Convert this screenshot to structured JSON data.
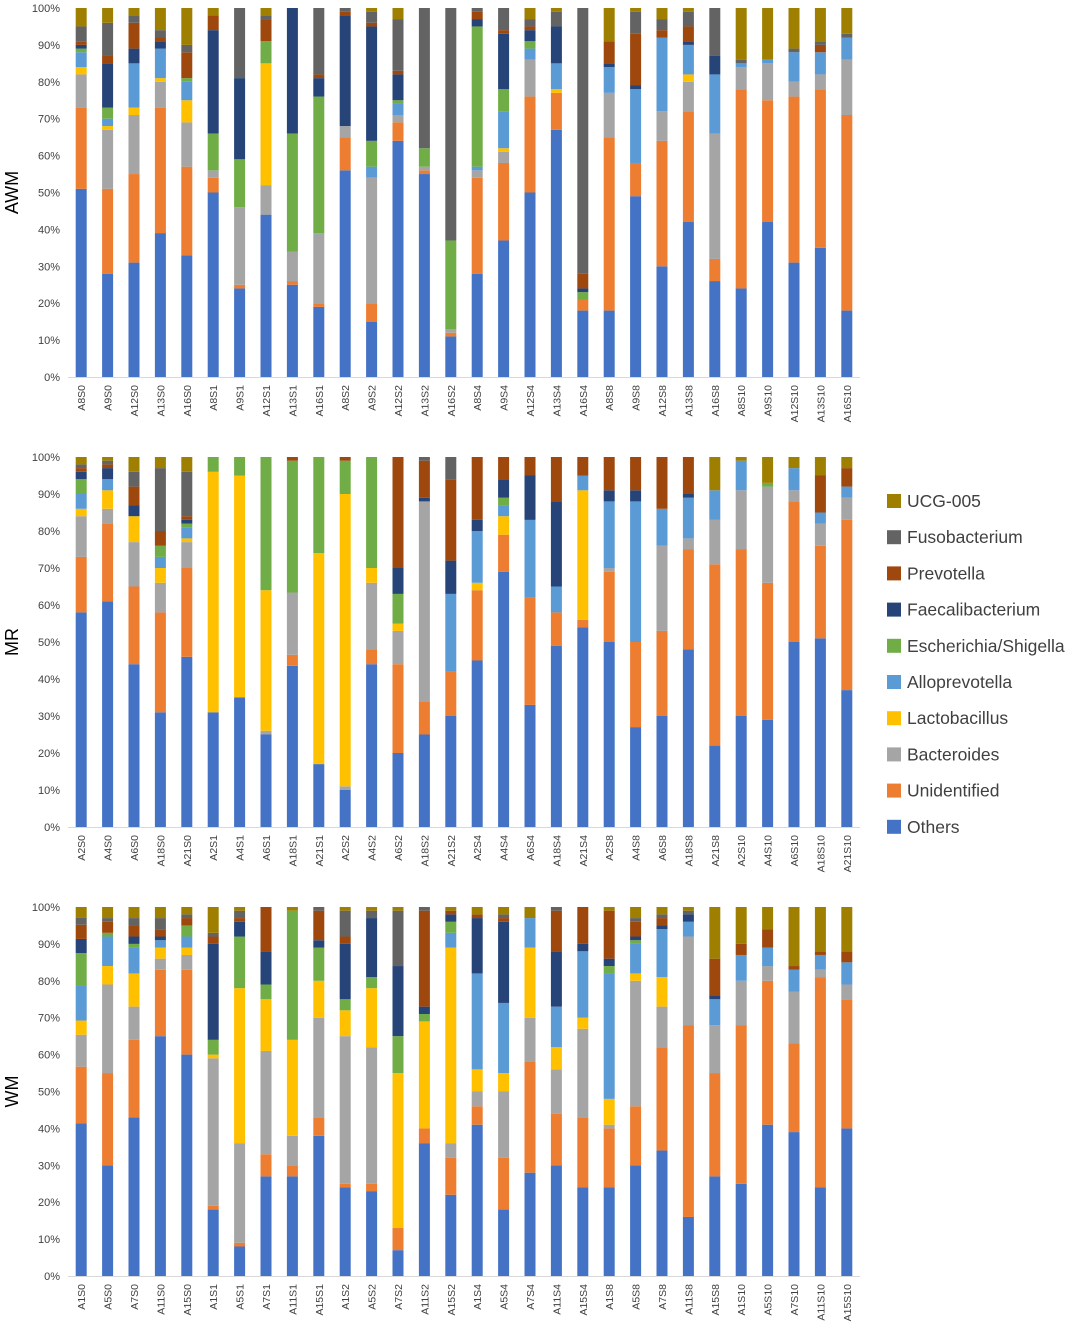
{
  "legend": {
    "placement": "right",
    "items": [
      {
        "name": "UCG-005",
        "color": "#9e7f00"
      },
      {
        "name": "Fusobacterium",
        "color": "#636363"
      },
      {
        "name": "Prevotella",
        "color": "#9e480e"
      },
      {
        "name": "Faecalibacterium",
        "color": "#264478"
      },
      {
        "name": "Escherichia/Shigella",
        "color": "#70ad47"
      },
      {
        "name": "Alloprevotella",
        "color": "#5b9bd5"
      },
      {
        "name": "Lactobacillus",
        "color": "#ffc000"
      },
      {
        "name": "Bacteroides",
        "color": "#a5a5a5"
      },
      {
        "name": "Unidentified",
        "color": "#ed7d31"
      },
      {
        "name": "Others",
        "color": "#4472c4"
      }
    ]
  },
  "chart_data": [
    {
      "type": "bar",
      "stacked": true,
      "ylabel": "AWM",
      "ylim": [
        0,
        100
      ],
      "yticks": [
        "0%",
        "10%",
        "20%",
        "30%",
        "40%",
        "50%",
        "60%",
        "70%",
        "80%",
        "90%",
        "100%"
      ],
      "series_order": [
        "Others",
        "Unidentified",
        "Bacteroides",
        "Lactobacillus",
        "Alloprevotella",
        "Escherichia/Shigella",
        "Faecalibacterium",
        "Prevotella",
        "Fusobacterium",
        "UCG-005"
      ],
      "categories": [
        "A8S0",
        "A9S0",
        "A12S0",
        "A13S0",
        "A16S0",
        "A8S1",
        "A9S1",
        "A12S1",
        "A13S1",
        "A16S1",
        "A8S2",
        "A9S2",
        "A12S2",
        "A13S2",
        "A16S2",
        "A8S4",
        "A9S4",
        "A12S4",
        "A13S4",
        "A16S4",
        "A8S8",
        "A9S8",
        "A12S8",
        "A13S8",
        "A16S8",
        "A8S10",
        "A9S10",
        "A12S10",
        "A13S10",
        "A16S10"
      ],
      "values": [
        [
          51,
          22,
          9,
          2,
          4,
          1,
          1,
          1,
          4,
          5
        ],
        [
          28,
          23,
          16,
          1,
          2,
          3,
          12,
          2,
          9,
          4
        ],
        [
          31,
          24,
          16,
          2,
          12,
          0,
          4,
          7,
          2,
          2
        ],
        [
          39,
          34,
          7,
          1,
          8,
          0,
          2,
          1,
          2,
          6
        ],
        [
          33,
          24,
          12,
          6,
          5,
          1,
          0,
          7,
          2,
          10
        ],
        [
          50,
          4,
          2,
          0,
          0,
          10,
          28,
          4,
          0,
          2
        ],
        [
          24,
          1,
          21,
          0,
          0,
          13,
          22,
          0,
          19,
          0
        ],
        [
          44,
          0,
          8,
          33,
          0,
          6,
          0,
          6,
          1,
          2
        ],
        [
          25,
          1,
          8,
          0,
          0,
          32,
          34,
          0,
          0,
          0
        ],
        [
          19,
          1,
          19,
          0,
          0,
          37,
          5,
          1,
          18,
          0
        ],
        [
          56,
          9,
          3,
          0,
          0,
          0,
          30,
          1,
          1,
          0
        ],
        [
          15,
          5,
          34,
          0,
          3,
          7,
          31,
          1,
          3,
          1
        ],
        [
          64,
          5,
          2,
          0,
          3,
          1,
          7,
          1,
          14,
          3
        ],
        [
          55,
          1,
          1,
          0,
          0,
          5,
          0,
          0,
          38,
          0
        ],
        [
          11,
          1,
          1,
          0,
          0,
          24,
          0,
          0,
          63,
          0
        ],
        [
          28,
          26,
          2,
          0,
          1,
          38,
          2,
          2,
          1,
          0
        ],
        [
          37,
          21,
          3,
          1,
          10,
          6,
          15,
          1,
          6,
          0
        ],
        [
          50,
          26,
          10,
          0,
          3,
          2,
          3,
          1,
          2,
          3
        ],
        [
          67,
          10,
          0,
          1,
          7,
          0,
          10,
          0,
          4,
          1
        ],
        [
          18,
          3,
          0,
          0,
          0,
          2,
          1,
          4,
          72,
          0
        ],
        [
          18,
          47,
          12,
          0,
          7,
          0,
          1,
          6,
          0,
          9
        ],
        [
          49,
          9,
          0,
          0,
          20,
          0,
          1,
          14,
          6,
          1
        ],
        [
          30,
          34,
          8,
          0,
          20,
          0,
          0,
          2,
          3,
          3
        ],
        [
          42,
          30,
          8,
          2,
          8,
          0,
          1,
          4,
          4,
          1
        ],
        [
          26,
          6,
          34,
          0,
          16,
          0,
          5,
          0,
          13,
          0
        ],
        [
          24,
          54,
          6,
          0,
          1,
          0,
          0,
          0,
          1,
          14
        ],
        [
          42,
          33,
          10,
          0,
          1,
          0,
          0,
          0,
          0,
          14
        ],
        [
          31,
          45,
          4,
          0,
          8,
          0,
          0,
          0,
          1,
          11
        ],
        [
          35,
          43,
          4,
          0,
          6,
          0,
          0,
          2,
          1,
          9
        ],
        [
          18,
          53,
          15,
          0,
          6,
          0,
          0,
          0,
          1,
          7
        ]
      ]
    },
    {
      "type": "bar",
      "stacked": true,
      "ylabel": "MR",
      "ylim": [
        0,
        100
      ],
      "yticks": [
        "0%",
        "10%",
        "20%",
        "30%",
        "40%",
        "50%",
        "60%",
        "70%",
        "80%",
        "90%",
        "100%"
      ],
      "series_order": [
        "Others",
        "Unidentified",
        "Bacteroides",
        "Lactobacillus",
        "Alloprevotella",
        "Escherichia/Shigella",
        "Faecalibacterium",
        "Prevotella",
        "Fusobacterium",
        "UCG-005"
      ],
      "categories": [
        "A2S0",
        "A4S0",
        "A6S0",
        "A18S0",
        "A21S0",
        "A2S1",
        "A4S1",
        "A6S1",
        "A18S1",
        "A21S1",
        "A2S2",
        "A4S2",
        "A6S2",
        "A18S2",
        "A21S2",
        "A2S4",
        "A4S4",
        "A6S4",
        "A18S4",
        "A21S4",
        "A2S8",
        "A4S8",
        "A6S8",
        "A18S8",
        "A21S8",
        "A2S10",
        "A4S10",
        "A6S10",
        "A18S10",
        "A21S10"
      ],
      "values": [
        [
          58,
          15,
          11,
          2,
          4,
          4,
          2,
          1,
          1,
          2
        ],
        [
          61,
          21,
          4,
          5,
          3,
          0,
          3,
          1,
          1,
          1
        ],
        [
          44,
          21,
          12,
          7,
          0,
          0,
          3,
          5,
          4,
          4
        ],
        [
          31,
          27,
          8,
          4,
          3,
          3,
          0,
          4,
          17,
          3
        ],
        [
          46,
          24,
          7,
          1,
          3,
          1,
          1,
          1,
          12,
          4
        ],
        [
          31,
          0,
          0,
          65,
          0,
          4,
          0,
          0,
          0,
          0
        ],
        [
          35,
          0,
          0,
          60,
          0,
          5,
          0,
          0,
          0,
          0
        ],
        [
          25,
          0,
          1,
          38,
          0,
          36,
          0,
          0,
          0,
          0
        ],
        [
          44,
          3,
          17,
          0,
          0,
          36,
          0,
          1,
          0,
          0
        ],
        [
          17,
          0,
          0,
          57,
          0,
          26,
          0,
          0,
          0,
          0
        ],
        [
          10,
          0,
          1,
          79,
          0,
          9,
          0,
          1,
          0,
          0
        ],
        [
          44,
          4,
          18,
          4,
          0,
          30,
          0,
          0,
          0,
          0
        ],
        [
          20,
          24,
          9,
          2,
          0,
          8,
          7,
          30,
          0,
          0
        ],
        [
          25,
          9,
          54,
          0,
          0,
          0,
          1,
          10,
          1,
          0
        ],
        [
          30,
          12,
          0,
          0,
          21,
          0,
          9,
          22,
          6,
          0
        ],
        [
          45,
          19,
          0,
          2,
          14,
          0,
          3,
          17,
          0,
          0
        ],
        [
          69,
          10,
          0,
          5,
          3,
          2,
          5,
          6,
          0,
          0
        ],
        [
          33,
          29,
          0,
          0,
          21,
          0,
          12,
          5,
          0,
          0
        ],
        [
          49,
          9,
          0,
          0,
          7,
          0,
          23,
          12,
          0,
          0
        ],
        [
          54,
          2,
          0,
          35,
          4,
          0,
          0,
          5,
          0,
          0
        ],
        [
          50,
          19,
          1,
          0,
          18,
          0,
          3,
          9,
          0,
          0
        ],
        [
          27,
          23,
          0,
          0,
          38,
          0,
          3,
          9,
          0,
          0
        ],
        [
          30,
          23,
          23,
          0,
          10,
          0,
          0,
          14,
          0,
          0
        ],
        [
          48,
          27,
          3,
          0,
          11,
          0,
          1,
          10,
          0,
          0
        ],
        [
          22,
          49,
          12,
          0,
          8,
          0,
          0,
          0,
          0,
          9
        ],
        [
          30,
          45,
          16,
          0,
          8,
          0,
          0,
          0,
          0,
          1
        ],
        [
          29,
          37,
          26,
          0,
          0,
          1,
          0,
          0,
          0,
          7
        ],
        [
          50,
          38,
          3,
          0,
          6,
          0,
          0,
          0,
          0,
          3
        ],
        [
          51,
          25,
          6,
          0,
          3,
          0,
          0,
          10,
          0,
          5
        ],
        [
          37,
          46,
          6,
          0,
          3,
          0,
          0,
          5,
          0,
          3
        ]
      ]
    },
    {
      "type": "bar",
      "stacked": true,
      "ylabel": "WM",
      "ylim": [
        0,
        100
      ],
      "yticks": [
        "0%",
        "10%",
        "20%",
        "30%",
        "40%",
        "50%",
        "60%",
        "70%",
        "80%",
        "90%",
        "100%"
      ],
      "series_order": [
        "Others",
        "Unidentified",
        "Bacteroides",
        "Lactobacillus",
        "Alloprevotella",
        "Escherichia/Shigella",
        "Faecalibacterium",
        "Prevotella",
        "Fusobacterium",
        "UCG-005"
      ],
      "categories": [
        "A1S0",
        "A5S0",
        "A7S0",
        "A11S0",
        "A15S0",
        "A1S1",
        "A5S1",
        "A7S1",
        "A11S1",
        "A15S1",
        "A1S2",
        "A5S2",
        "A7S2",
        "A11S2",
        "A15S2",
        "A1S4",
        "A5S4",
        "A7S4",
        "A11S4",
        "A15S4",
        "A1S8",
        "A5S8",
        "A7S8",
        "A11S8",
        "A15S8",
        "A1S10",
        "A5S10",
        "A7S10",
        "A11S10",
        "A15S10"
      ],
      "values": [
        [
          43,
          16,
          9,
          4,
          10,
          9,
          4,
          4,
          2,
          3
        ],
        [
          30,
          25,
          24,
          5,
          8,
          1,
          0,
          3,
          1,
          3
        ],
        [
          43,
          21,
          9,
          9,
          7,
          1,
          2,
          3,
          2,
          3
        ],
        [
          65,
          18,
          3,
          3,
          2,
          0,
          1,
          2,
          3,
          3
        ],
        [
          60,
          23,
          4,
          2,
          3,
          3,
          0,
          2,
          1,
          2
        ],
        [
          18,
          1,
          40,
          1,
          0,
          4,
          26,
          2,
          1,
          7
        ],
        [
          8,
          1,
          27,
          42,
          0,
          14,
          4,
          1,
          2,
          1
        ],
        [
          27,
          6,
          28,
          14,
          0,
          4,
          9,
          12,
          0,
          0
        ],
        [
          27,
          3,
          8,
          26,
          0,
          35,
          0,
          0,
          0,
          1
        ],
        [
          38,
          5,
          27,
          10,
          0,
          9,
          2,
          8,
          1,
          0
        ],
        [
          24,
          1,
          40,
          7,
          0,
          3,
          15,
          2,
          7,
          1
        ],
        [
          23,
          2,
          37,
          16,
          0,
          3,
          16,
          0,
          2,
          1
        ],
        [
          7,
          6,
          0,
          42,
          0,
          10,
          19,
          0,
          15,
          1
        ],
        [
          36,
          4,
          0,
          29,
          0,
          2,
          2,
          26,
          1,
          0
        ],
        [
          22,
          10,
          4,
          53,
          4,
          3,
          2,
          1,
          0,
          1
        ],
        [
          41,
          5,
          4,
          6,
          26,
          0,
          15,
          1,
          0,
          2
        ],
        [
          18,
          14,
          18,
          5,
          19,
          0,
          22,
          1,
          1,
          2
        ],
        [
          28,
          30,
          12,
          19,
          8,
          0,
          0,
          0,
          0,
          3
        ],
        [
          30,
          14,
          12,
          6,
          11,
          0,
          15,
          11,
          1,
          0
        ],
        [
          24,
          19,
          24,
          3,
          18,
          0,
          2,
          10,
          0,
          0
        ],
        [
          24,
          16,
          1,
          7,
          34,
          2,
          2,
          13,
          0,
          1
        ],
        [
          30,
          16,
          34,
          2,
          8,
          1,
          1,
          4,
          1,
          3
        ],
        [
          34,
          28,
          11,
          8,
          13,
          0,
          1,
          2,
          1,
          2
        ],
        [
          16,
          52,
          24,
          0,
          4,
          0,
          2,
          0,
          1,
          1
        ],
        [
          27,
          28,
          13,
          0,
          7,
          0,
          1,
          10,
          0,
          14
        ],
        [
          25,
          43,
          12,
          0,
          7,
          0,
          0,
          3,
          0,
          10
        ],
        [
          41,
          39,
          4,
          0,
          5,
          0,
          0,
          5,
          0,
          6
        ],
        [
          39,
          24,
          14,
          0,
          6,
          0,
          0,
          1,
          0,
          16
        ],
        [
          24,
          57,
          2,
          0,
          4,
          0,
          0,
          1,
          0,
          12
        ],
        [
          40,
          35,
          4,
          0,
          6,
          0,
          0,
          3,
          0,
          12
        ]
      ]
    }
  ]
}
